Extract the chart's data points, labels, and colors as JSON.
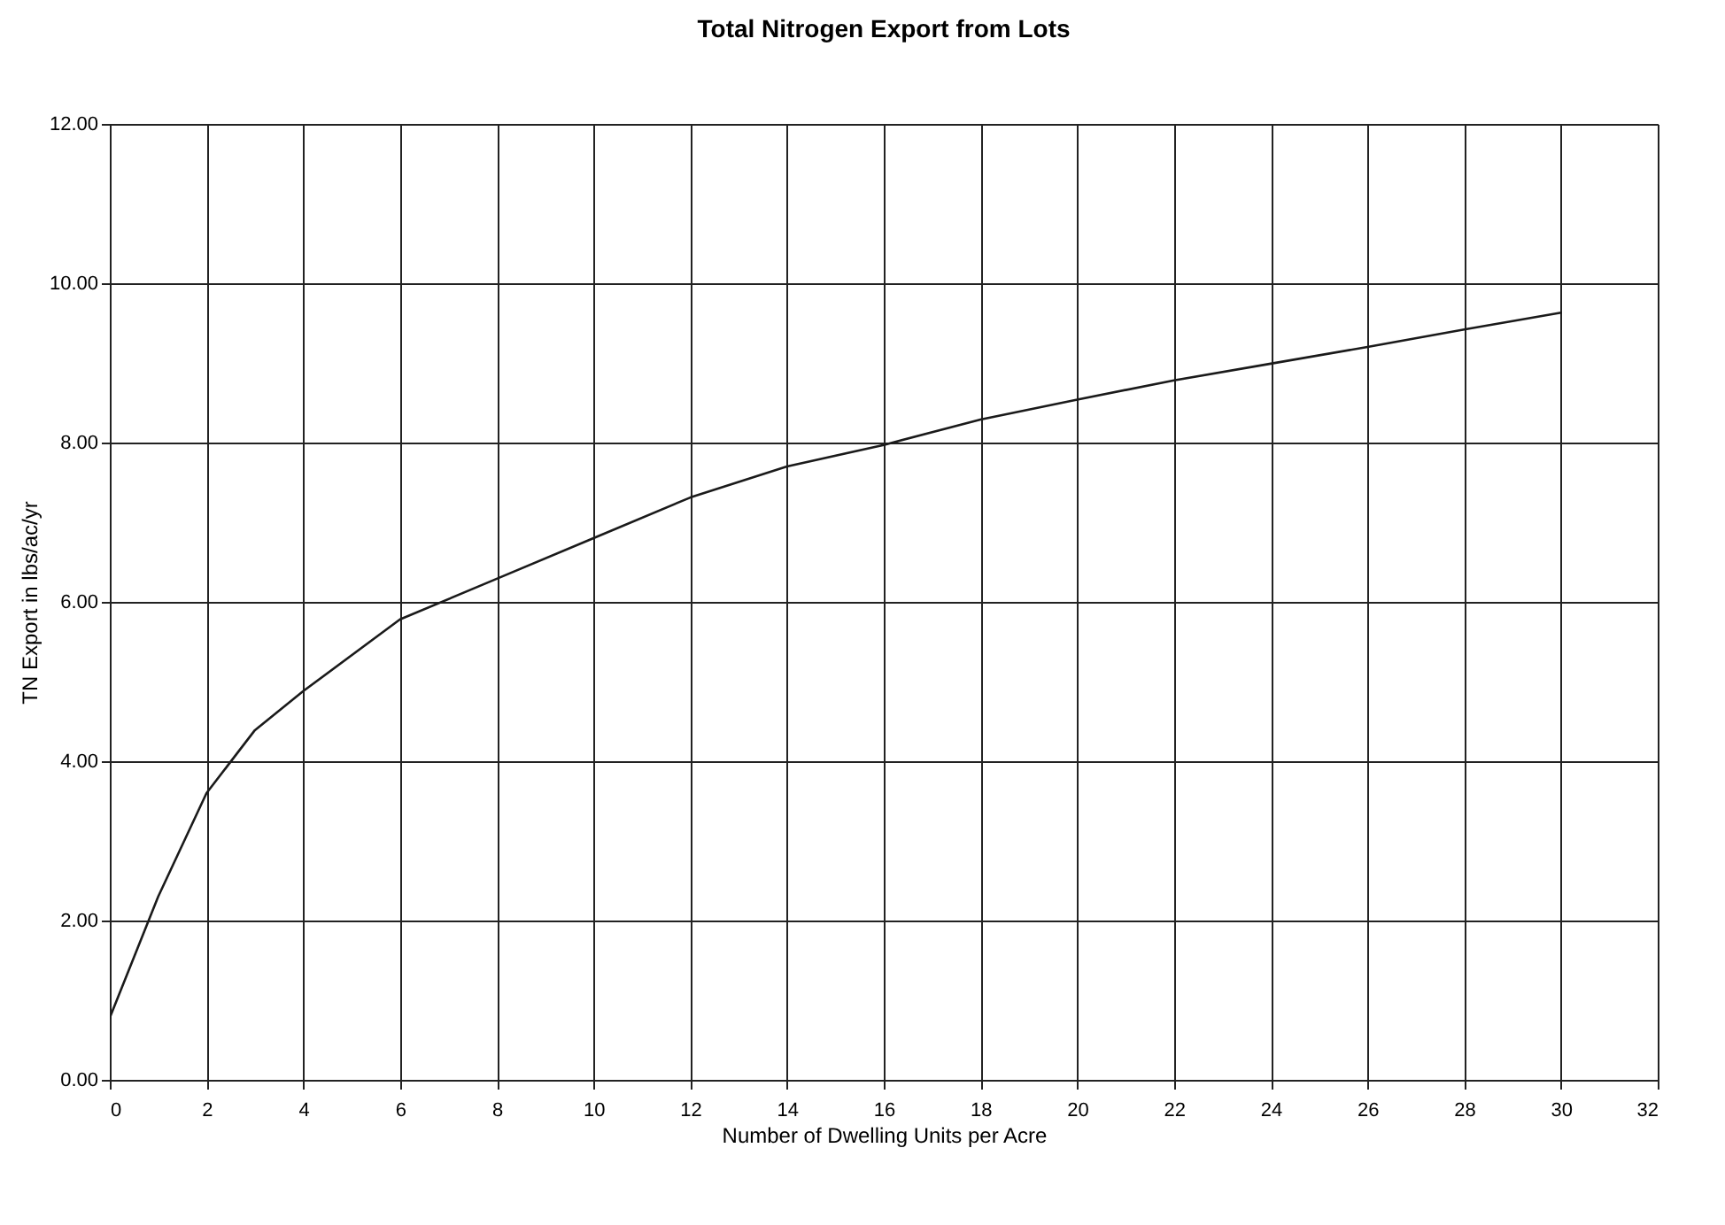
{
  "chart_data": {
    "type": "line",
    "title": "Total Nitrogen Export from Lots",
    "xlabel": "Number of Dwelling Units per Acre",
    "ylabel": "TN Export in lbs/ac/yr",
    "x": [
      0,
      1,
      2,
      3,
      4,
      6,
      8,
      10,
      12,
      14,
      16,
      18,
      20,
      22,
      24,
      26,
      28,
      30
    ],
    "series": [
      {
        "color": "#1a1a1a",
        "values": [
          0.78,
          2.3,
          3.6,
          4.39,
          4.88,
          5.78,
          6.29,
          6.8,
          7.31,
          7.7,
          7.97,
          8.29,
          8.54,
          8.78,
          8.99,
          9.2,
          9.42,
          9.63
        ]
      }
    ],
    "xlim": [
      0,
      32
    ],
    "xticks": [
      0,
      2,
      4,
      6,
      8,
      10,
      12,
      14,
      16,
      18,
      20,
      22,
      24,
      26,
      28,
      30,
      32
    ],
    "ylim": [
      0,
      12
    ],
    "yticks": [
      {
        "value": 0,
        "label": "0.00"
      },
      {
        "value": 2,
        "label": "2.00"
      },
      {
        "value": 4,
        "label": "4.00"
      },
      {
        "value": 6,
        "label": "6.00"
      },
      {
        "value": 8,
        "label": "8.00"
      },
      {
        "value": 10,
        "label": "10.00"
      },
      {
        "value": 12,
        "label": "12.00"
      }
    ],
    "grid": true,
    "marker": "none",
    "line_style": "solid",
    "legend": false
  }
}
